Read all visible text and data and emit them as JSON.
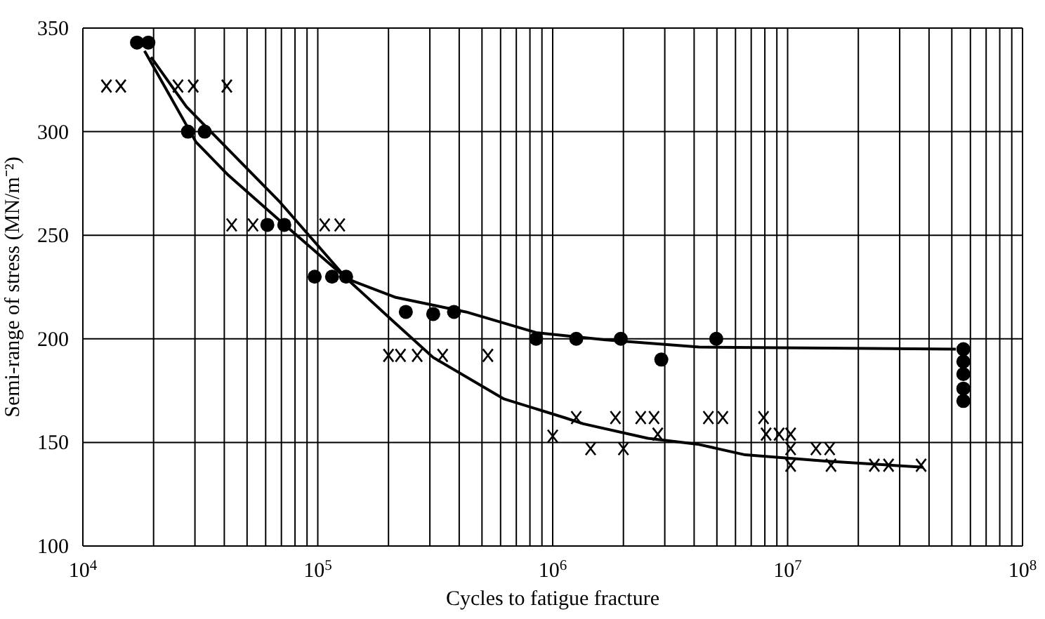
{
  "chart_data": {
    "type": "scatter",
    "xlabel": "Cycles to fatigue fracture",
    "ylabel": "Semi-range of stress (MN/m⁻²)",
    "log": "x",
    "grid": true,
    "xlim": [
      10000,
      100000000
    ],
    "xticks": [
      {
        "value": 10000,
        "label": "10$^{4}$"
      },
      {
        "value": 20000,
        "label": null
      },
      {
        "value": 30000,
        "label": null
      },
      {
        "value": 40000,
        "label": null
      },
      {
        "value": 50000,
        "label": null
      },
      {
        "value": 60000,
        "label": null
      },
      {
        "value": 70000,
        "label": null
      },
      {
        "value": 80000,
        "label": null
      },
      {
        "value": 90000,
        "label": null
      },
      {
        "value": 100000,
        "label": "10$^{5}$"
      },
      {
        "value": 200000,
        "label": null
      },
      {
        "value": 300000,
        "label": null
      },
      {
        "value": 400000,
        "label": null
      },
      {
        "value": 500000,
        "label": null
      },
      {
        "value": 600000,
        "label": null
      },
      {
        "value": 700000,
        "label": null
      },
      {
        "value": 800000,
        "label": null
      },
      {
        "value": 900000,
        "label": null
      },
      {
        "value": 1000000,
        "label": "10$^{6}$"
      },
      {
        "value": 2000000,
        "label": null
      },
      {
        "value": 3000000,
        "label": null
      },
      {
        "value": 4000000,
        "label": null
      },
      {
        "value": 5000000,
        "label": null
      },
      {
        "value": 6000000,
        "label": null
      },
      {
        "value": 7000000,
        "label": null
      },
      {
        "value": 8000000,
        "label": null
      },
      {
        "value": 9000000,
        "label": null
      },
      {
        "value": 10000000,
        "label": "10$^{7}$"
      },
      {
        "value": 20000000,
        "label": null
      },
      {
        "value": 30000000,
        "label": null
      },
      {
        "value": 40000000,
        "label": null
      },
      {
        "value": 50000000,
        "label": null
      },
      {
        "value": 60000000,
        "label": null
      },
      {
        "value": 70000000,
        "label": null
      },
      {
        "value": 80000000,
        "label": null
      },
      {
        "value": 90000000,
        "label": null
      },
      {
        "value": 100000000,
        "label": "10$^{8}$"
      }
    ],
    "ylim": [
      100,
      350
    ],
    "yticks": [
      100,
      150,
      200,
      250,
      300,
      350
    ],
    "series": [
      {
        "marker": "cross",
        "color": "#000000",
        "x": [
          12600,
          14500,
          25400,
          29500,
          41000,
          43000,
          53000,
          107000,
          124000,
          200000,
          225000,
          265000,
          340000,
          530000,
          1000000,
          1260000,
          1450000,
          1850000,
          2000000,
          2370000,
          2700000,
          2800000,
          4600000,
          5300000,
          7900000,
          8100000,
          9200000,
          10300000,
          10300000,
          10300000,
          13200000,
          15100000,
          15300000,
          23400000,
          26900000,
          37000000
        ],
        "values": [
          322,
          322,
          322,
          322,
          322,
          255,
          255,
          255,
          255,
          192,
          192,
          192,
          192,
          192,
          153,
          162,
          147,
          162,
          147,
          162,
          162,
          154,
          162,
          162,
          162,
          154,
          154,
          154,
          147,
          139,
          147,
          147,
          139,
          139,
          139,
          139
        ]
      },
      {
        "marker": "circle",
        "color": "#000000",
        "x": [
          17000,
          19000,
          28000,
          33000,
          61000,
          72000,
          97000,
          115000,
          132000,
          237000,
          310000,
          380000,
          850000,
          1260000,
          1950000,
          2900000,
          4970000,
          56000000,
          56000000,
          56000000,
          56000000,
          56000000
        ],
        "values": [
          343,
          343,
          300,
          300,
          255,
          255,
          230,
          230,
          230,
          213,
          212,
          213,
          200,
          200,
          200,
          190,
          200,
          195,
          189,
          183,
          176,
          170
        ]
      },
      {
        "type": "line",
        "marker": "none",
        "color": "#000000",
        "x": [
          18300,
          30300,
          41600,
          69000,
          133000,
          215000,
          427000,
          850000,
          1680000,
          4200000,
          52000000
        ],
        "values": [
          339,
          295,
          279,
          257,
          229,
          220,
          213,
          203,
          199.5,
          196,
          195
        ]
      },
      {
        "type": "line",
        "marker": "none",
        "color": "#000000",
        "x": [
          19500,
          27600,
          69000,
          133000,
          207000,
          310000,
          620000,
          1120000,
          1350000,
          2540000,
          4200000,
          6600000,
          14500000,
          37800000
        ],
        "values": [
          336,
          312,
          266,
          229,
          209,
          191,
          171,
          162,
          159,
          152,
          149,
          144,
          141,
          138
        ]
      }
    ]
  }
}
